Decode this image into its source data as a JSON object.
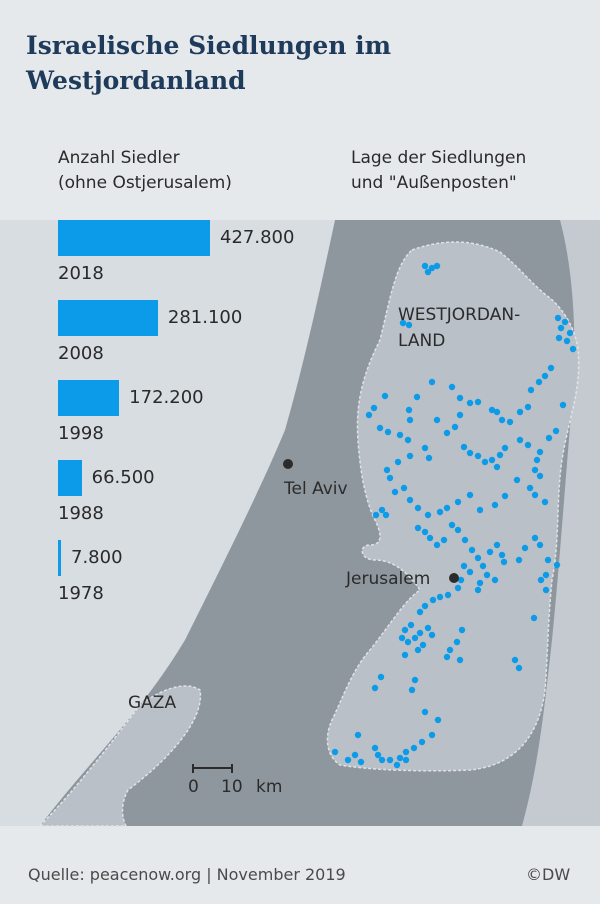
{
  "title": [
    "Israelische Siedlungen im",
    "Westjordanland"
  ],
  "chart_data": {
    "type": "bar",
    "title": "Anzahl Siedler (ohne Ostjerusalem)",
    "subtitle_lines": [
      "Anzahl Siedler",
      "(ohne Ostjerusalem)"
    ],
    "categories": [
      "2018",
      "2008",
      "1998",
      "1988",
      "1978"
    ],
    "values": [
      427800,
      281100,
      172200,
      66500,
      7800
    ],
    "value_labels": [
      "427.800",
      "281.100",
      "172.200",
      "66.500",
      "7.800"
    ],
    "orientation": "horizontal",
    "bar_color": "#0c9be9"
  },
  "map": {
    "heading_lines": [
      "Lage der Siedlungen",
      "und \"Außenposten\""
    ],
    "region_label_lines": [
      "WESTJORDAN-",
      "LAND"
    ],
    "cities": [
      {
        "name": "Tel Aviv"
      },
      {
        "name": "Jerusalem"
      }
    ],
    "gaza_label": "GAZA",
    "scale": {
      "start": "0",
      "end": "10",
      "unit": "km"
    },
    "colors": {
      "sea": "#d8dde2",
      "land": "#8f979e",
      "west_bank": "#b9c0c7",
      "settlement": "#0c9be9"
    }
  },
  "footer": {
    "source": "Quelle: peacenow.org | November 2019",
    "copyright": "©DW"
  }
}
